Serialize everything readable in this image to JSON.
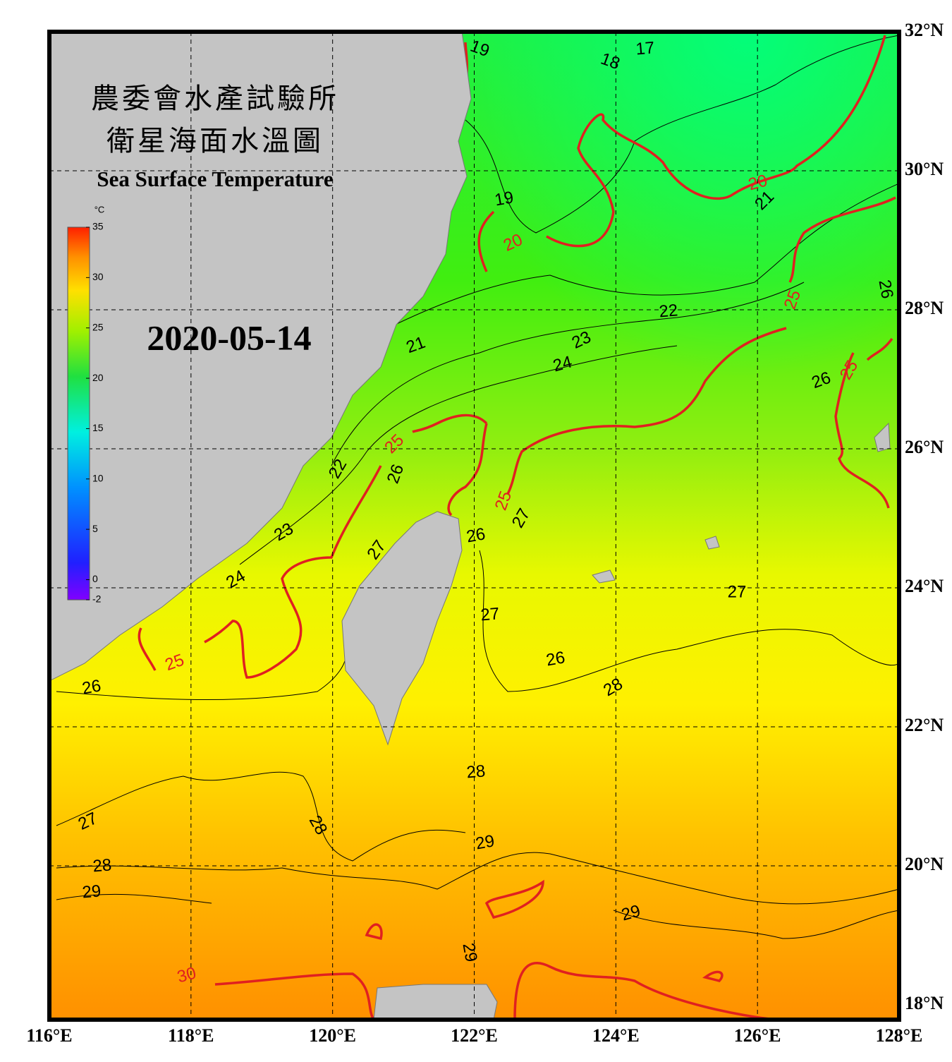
{
  "header": {
    "title_zh": "農委會水產試驗所",
    "subtitle_zh": "衛星海面水溫圖",
    "title_en": "Sea Surface Temperature",
    "date": "2020-05-14"
  },
  "colorbar": {
    "unit": "°C",
    "range": [
      -2,
      35
    ],
    "ticks": [
      35,
      30,
      25,
      20,
      15,
      10,
      5,
      0,
      -2
    ]
  },
  "axes": {
    "lon_labels": [
      "116°E",
      "118°E",
      "120°E",
      "122°E",
      "124°E",
      "126°E",
      "128°E"
    ],
    "lat_labels": [
      "32°N",
      "30°N",
      "28°N",
      "26°N",
      "24°N",
      "22°N",
      "20°N",
      "18°N"
    ]
  },
  "contour_labels": [
    "19",
    "18",
    "17",
    "19",
    "20",
    "20",
    "21",
    "22",
    "23",
    "24",
    "21",
    "25",
    "26",
    "25",
    "25",
    "26",
    "22",
    "25",
    "27",
    "26",
    "23",
    "24",
    "27",
    "27",
    "27",
    "26",
    "28",
    "25",
    "26",
    "28",
    "28",
    "27",
    "29",
    "28",
    "29",
    "29",
    "30",
    "29",
    "26"
  ]
}
